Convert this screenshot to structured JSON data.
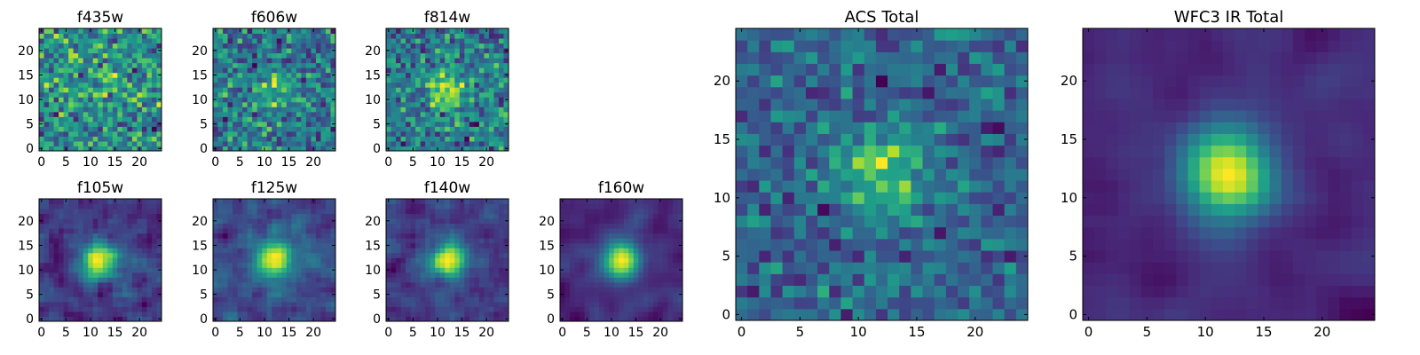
{
  "figure": {
    "background": "#ffffff",
    "colormap": "viridis"
  },
  "chart_data": [
    {
      "type": "heatmap",
      "title": "f435w",
      "size": 25,
      "seed": 11,
      "smooth": 0,
      "noise": 1.0,
      "blob": 0.15,
      "xticks": [
        "0",
        "5",
        "10",
        "15",
        "20"
      ],
      "yticks": [
        "0",
        "5",
        "10",
        "15",
        "20"
      ]
    },
    {
      "type": "heatmap",
      "title": "f606w",
      "size": 25,
      "seed": 23,
      "smooth": 0,
      "noise": 1.0,
      "blob": 0.25,
      "xticks": [
        "0",
        "5",
        "10",
        "15",
        "20"
      ],
      "yticks": [
        "0",
        "5",
        "10",
        "15",
        "20"
      ]
    },
    {
      "type": "heatmap",
      "title": "f814w",
      "size": 25,
      "seed": 37,
      "smooth": 0,
      "noise": 0.9,
      "blob": 0.45,
      "xticks": [
        "0",
        "5",
        "10",
        "15",
        "20"
      ],
      "yticks": [
        "0",
        "5",
        "10",
        "15",
        "20"
      ]
    },
    {
      "type": "heatmap",
      "title": "f105w",
      "size": 25,
      "seed": 41,
      "smooth": 1,
      "noise": 0.8,
      "blob": 0.55,
      "xticks": [
        "0",
        "5",
        "10",
        "15",
        "20"
      ],
      "yticks": [
        "0",
        "5",
        "10",
        "15",
        "20"
      ]
    },
    {
      "type": "heatmap",
      "title": "f125w",
      "size": 25,
      "seed": 53,
      "smooth": 1,
      "noise": 0.8,
      "blob": 0.6,
      "xticks": [
        "0",
        "5",
        "10",
        "15",
        "20"
      ],
      "yticks": [
        "0",
        "5",
        "10",
        "15",
        "20"
      ]
    },
    {
      "type": "heatmap",
      "title": "f140w",
      "size": 25,
      "seed": 67,
      "smooth": 1,
      "noise": 0.8,
      "blob": 0.65,
      "xticks": [
        "0",
        "5",
        "10",
        "15",
        "20"
      ],
      "yticks": [
        "0",
        "5",
        "10",
        "15",
        "20"
      ]
    },
    {
      "type": "heatmap",
      "title": "f160w",
      "size": 25,
      "seed": 79,
      "smooth": 2,
      "noise": 0.8,
      "blob": 0.7,
      "xticks": [
        "0",
        "5",
        "10",
        "15",
        "20"
      ],
      "yticks": [
        "0",
        "5",
        "10",
        "15",
        "20"
      ]
    },
    {
      "type": "heatmap",
      "title": "ACS Total",
      "size": 25,
      "seed": 97,
      "smooth": 0,
      "noise": 0.8,
      "blob": 0.5,
      "xticks": [
        "0",
        "5",
        "10",
        "15",
        "20"
      ],
      "yticks": [
        "0",
        "5",
        "10",
        "15",
        "20"
      ]
    },
    {
      "type": "heatmap",
      "title": "WFC3 IR Total",
      "size": 25,
      "seed": 113,
      "smooth": 2,
      "noise": 0.7,
      "blob": 0.9,
      "xticks": [
        "0",
        "5",
        "10",
        "15",
        "20"
      ],
      "yticks": [
        "0",
        "5",
        "10",
        "15",
        "20"
      ]
    }
  ]
}
